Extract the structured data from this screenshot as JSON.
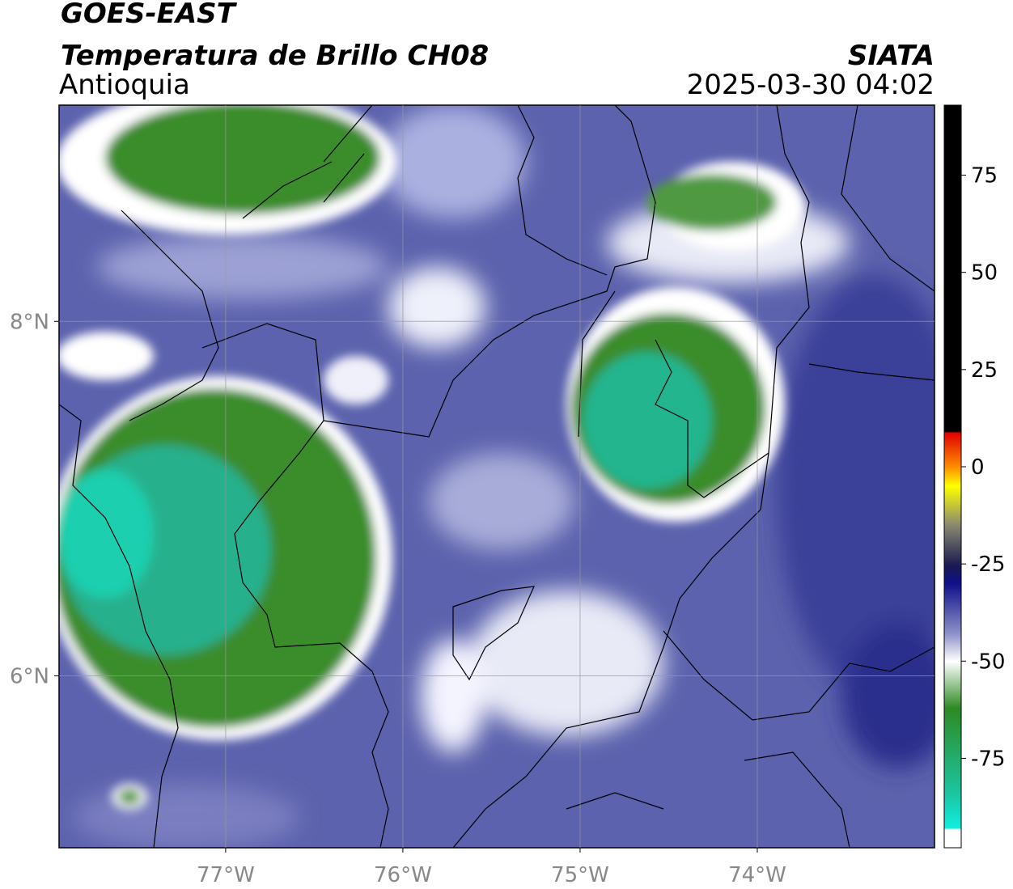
{
  "header": {
    "title": "GOES-EAST",
    "subtitle": "Temperatura de Brillo CH08",
    "region": "Antioquia",
    "source": "SIATA",
    "datetime": "2025-03-30 04:02"
  },
  "map": {
    "xlim": [
      -77.94,
      -73.0
    ],
    "ylim": [
      5.03,
      9.22
    ],
    "xticks": [
      {
        "value": -77,
        "label": "77°W"
      },
      {
        "value": -76,
        "label": "76°W"
      },
      {
        "value": -75,
        "label": "75°W"
      },
      {
        "value": -74,
        "label": "74°W"
      }
    ],
    "yticks": [
      {
        "value": 8,
        "label": "8°N"
      },
      {
        "value": 6,
        "label": "6°N"
      }
    ],
    "grid": true
  },
  "colorbar": {
    "lim": [
      -98,
      93
    ],
    "ticks": [
      75,
      50,
      25,
      0,
      -25,
      -50,
      -75
    ]
  }
}
